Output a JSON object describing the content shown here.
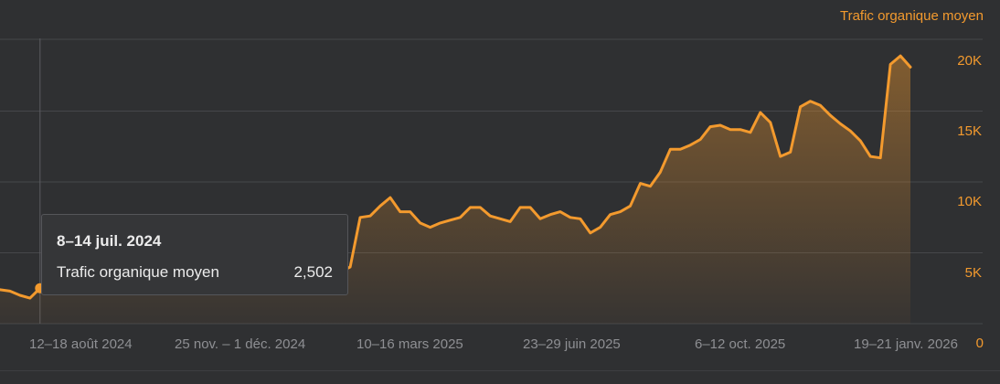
{
  "chart_data": {
    "type": "area",
    "series": [
      {
        "name": "Trafic organique moyen",
        "color": "#f39a2e",
        "values": [
          2400,
          2300,
          2000,
          1800,
          2502,
          2550,
          2600,
          2500,
          2600,
          2700,
          2750,
          2800,
          2900,
          2950,
          3000,
          3050,
          3100,
          3150,
          3150,
          3200,
          3200,
          3250,
          3300,
          3300,
          3350,
          3350,
          3400,
          3450,
          3450,
          3500,
          3520,
          3550,
          3580,
          3600,
          3650,
          4000,
          7500,
          7600,
          8300,
          8900,
          7900,
          7900,
          7100,
          6800,
          7100,
          7300,
          7500,
          8200,
          8200,
          7600,
          7400,
          7200,
          8200,
          8200,
          7400,
          7700,
          7900,
          7500,
          7400,
          6400,
          6800,
          7700,
          7900,
          8300,
          9900,
          9700,
          10700,
          12300,
          12300,
          12600,
          13000,
          13900,
          14000,
          13700,
          13700,
          13500,
          14900,
          14200,
          11800,
          12100,
          15300,
          15700,
          15400,
          14700,
          14100,
          13600,
          12900,
          11800,
          11700,
          18300,
          18900,
          18100
        ]
      }
    ],
    "ylim": [
      0,
      22000
    ],
    "yticks": [
      "20K",
      "15K",
      "10K",
      "5K",
      "0"
    ],
    "x_labels": [
      "12–18 août 2024",
      "25 nov. – 1 déc. 2024",
      "10–16 mars 2025",
      "23–29 juin 2025",
      "6–12 oct. 2025",
      "19–21 janv. 2026"
    ],
    "y_axis_side": "right",
    "grid": true,
    "highlighted_index": 4
  },
  "series_label": "Trafic organique moyen",
  "tooltip": {
    "date": "8–14 juil. 2024",
    "series_name": "Trafic organique moyen",
    "value": "2,502"
  },
  "colors": {
    "line": "#f39a2e",
    "background": "#2f3032",
    "grid": "#46474a"
  }
}
